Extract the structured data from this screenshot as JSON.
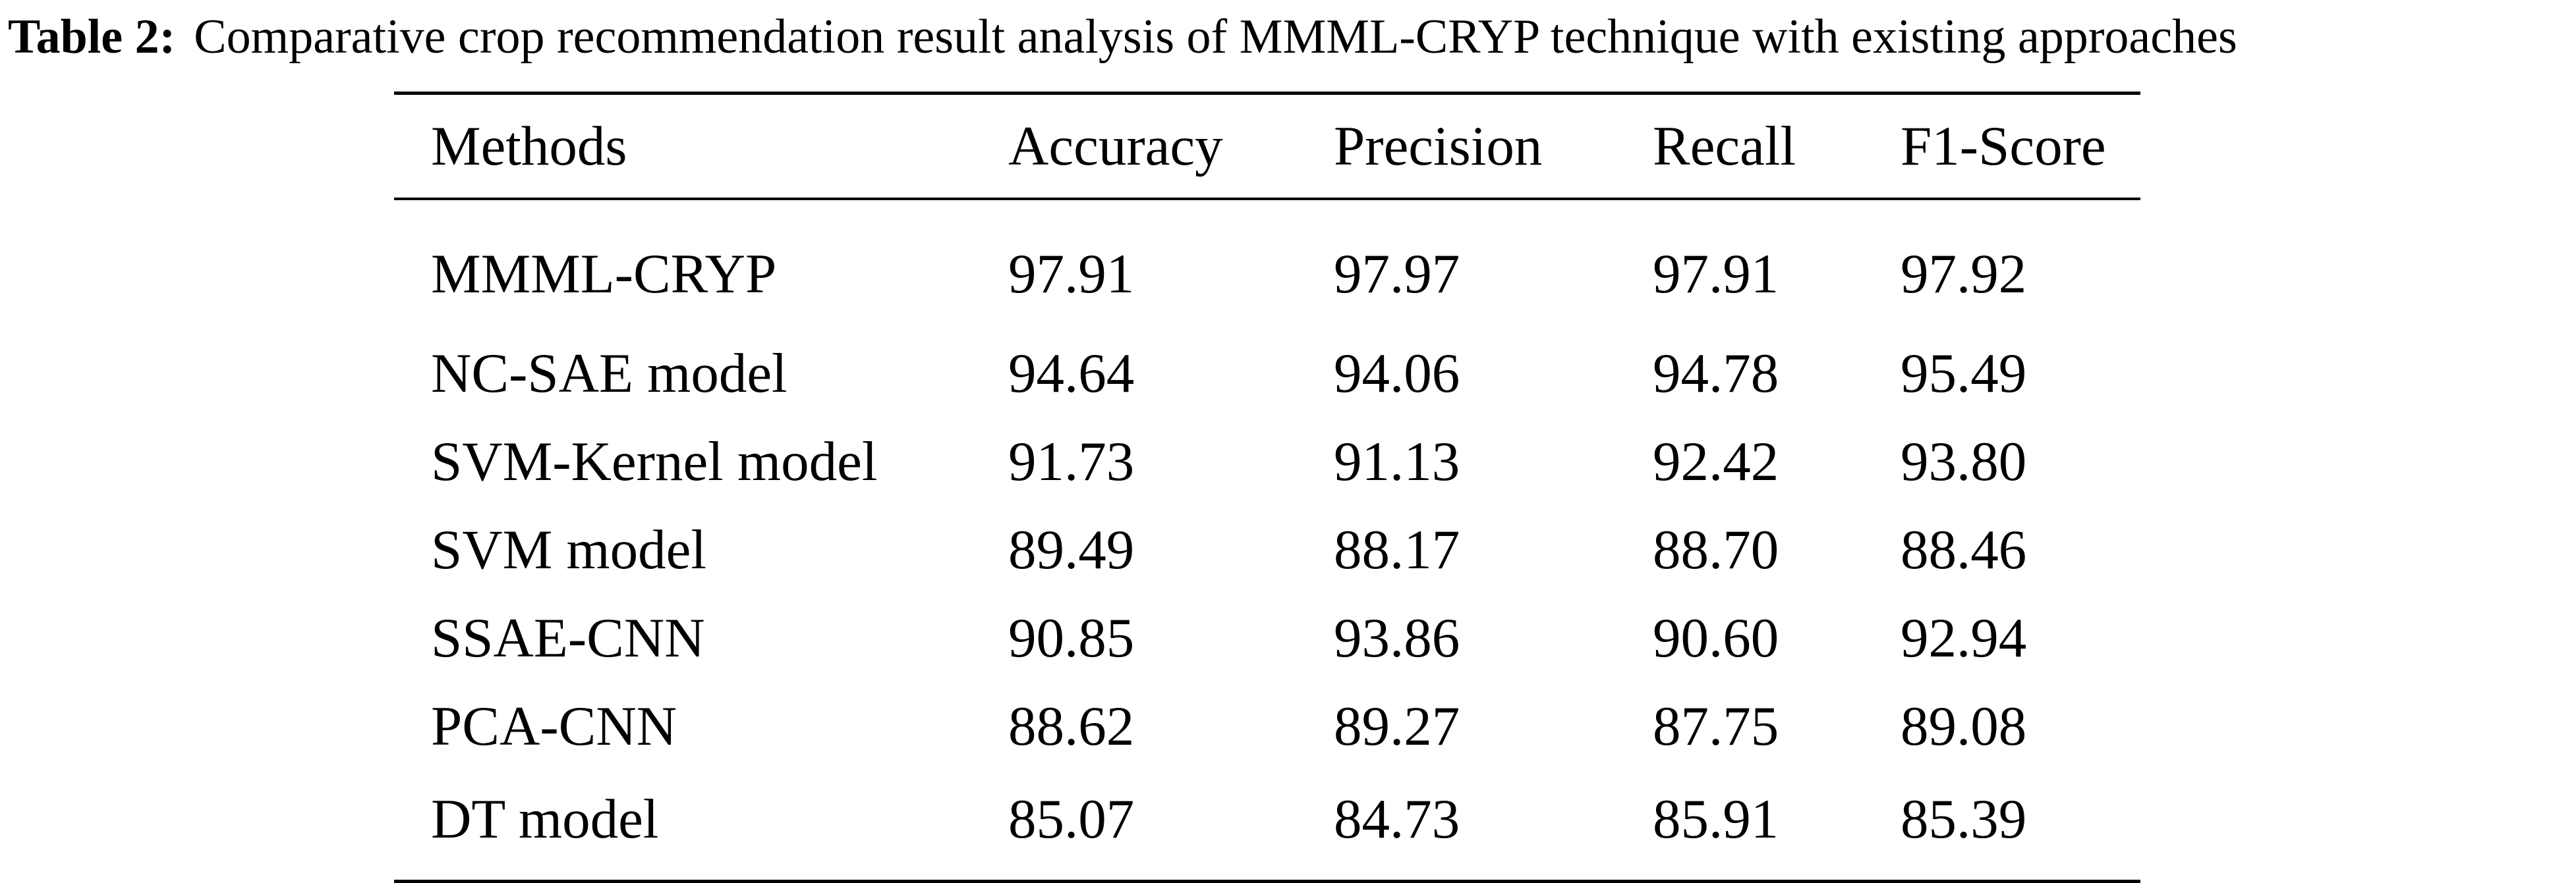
{
  "caption": {
    "label": "Table 2:",
    "text": "Comparative crop recommendation result analysis of MMML-CRYP technique with existing approaches"
  },
  "table": {
    "headers": [
      "Methods",
      "Accuracy",
      "Precision",
      "Recall",
      "F1-Score"
    ],
    "rows": [
      [
        "MMML-CRYP",
        "97.91",
        "97.97",
        "97.91",
        "97.92"
      ],
      [
        "NC-SAE model",
        "94.64",
        "94.06",
        "94.78",
        "95.49"
      ],
      [
        "SVM-Kernel model",
        "91.73",
        "91.13",
        "92.42",
        "93.80"
      ],
      [
        "SVM model",
        "89.49",
        "88.17",
        "88.70",
        "88.46"
      ],
      [
        "SSAE-CNN",
        "90.85",
        "93.86",
        "90.60",
        "92.94"
      ],
      [
        "PCA-CNN",
        "88.62",
        "89.27",
        "87.75",
        "89.08"
      ],
      [
        "DT model",
        "85.07",
        "84.73",
        "85.91",
        "85.39"
      ]
    ]
  }
}
